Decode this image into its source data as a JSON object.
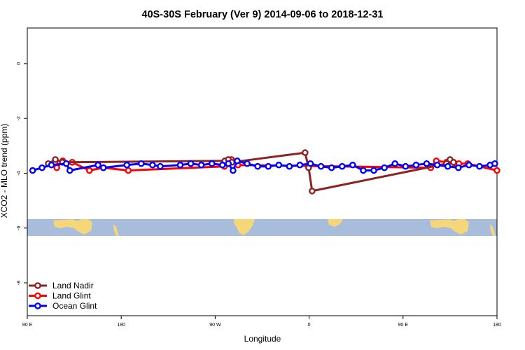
{
  "chart_data": {
    "type": "line",
    "title": "40S-30S February (Ver 9)   2014-09-06 to 2018-12-31",
    "xlabel": "Longitude",
    "ylabel": "XCO2 - MLO trend (ppm)",
    "xlim": [
      90,
      450
    ],
    "ylim": [
      -9.2,
      1.3
    ],
    "x_ticks": [
      {
        "value": 90,
        "label": "90 E"
      },
      {
        "value": 162,
        "label": "180"
      },
      {
        "value": 234,
        "label": "90 W"
      },
      {
        "value": 306,
        "label": "0"
      },
      {
        "value": 378,
        "label": "90 E"
      },
      {
        "value": 450,
        "label": "180"
      }
    ],
    "y_ticks": [
      0,
      -2,
      -4,
      -6,
      -8
    ],
    "legend_position": "bottom-left",
    "series": [
      {
        "name": "Land Nadir",
        "color": "#8b2323",
        "x": [
          106.1,
          111.5,
          116.9,
          241.4,
          244.1,
          246.8,
          302.9,
          305.6,
          308.3,
          411.3,
          414.0,
          416.7
        ],
        "y": [
          -3.65,
          -3.5,
          -3.6,
          -3.55,
          -3.5,
          -3.6,
          -3.25,
          -3.8,
          -4.65,
          -3.65,
          -3.5,
          -3.6
        ]
      },
      {
        "name": "Land Glint",
        "color": "#ff0000",
        "x": [
          111.3,
          112.6,
          117.2,
          119.9,
          124.4,
          137.6,
          148.3,
          167.4,
          241.1,
          243.8,
          246.5,
          251.4,
          399.2,
          403.5,
          411.3,
          417.8,
          420.8,
          427.6,
          450.0
        ],
        "y": [
          -3.6,
          -3.8,
          -3.55,
          -3.65,
          -3.6,
          -3.9,
          -3.8,
          -3.9,
          -3.75,
          -3.6,
          -3.5,
          -3.7,
          -3.8,
          -3.55,
          -3.6,
          -3.65,
          -3.65,
          -3.65,
          -3.9
        ]
      },
      {
        "name": "Ocean Glint",
        "color": "#0000ff",
        "x": [
          94.1,
          101.3,
          108.5,
          119.9,
          122.6,
          144.2,
          148.3,
          166.3,
          177.3,
          186.0,
          191.9,
          207.2,
          215.3,
          223.4,
          231.5,
          239.6,
          244.1,
          247.7,
          250.9,
          258.5,
          266.6,
          274.7,
          282.8,
          290.9,
          298.9,
          307.0,
          315.1,
          323.2,
          331.3,
          339.4,
          347.5,
          355.6,
          363.7,
          371.8,
          379.9,
          388.0,
          396.1,
          404.2,
          412.3,
          420.4,
          428.5,
          436.6,
          444.7,
          448.3
        ],
        "y": [
          -3.9,
          -3.8,
          -3.7,
          -3.65,
          -3.9,
          -3.7,
          -3.8,
          -3.7,
          -3.65,
          -3.7,
          -3.75,
          -3.7,
          -3.65,
          -3.7,
          -3.65,
          -3.7,
          -3.65,
          -3.9,
          -3.55,
          -3.65,
          -3.75,
          -3.75,
          -3.7,
          -3.75,
          -3.7,
          -3.65,
          -3.75,
          -3.8,
          -3.75,
          -3.7,
          -3.9,
          -3.9,
          -3.8,
          -3.65,
          -3.75,
          -3.7,
          -3.65,
          -3.7,
          -3.75,
          -3.8,
          -3.7,
          -3.75,
          -3.7,
          -3.65
        ]
      }
    ]
  },
  "map_strip": {
    "ocean_color": "#a8bcdc",
    "land_color": "#f5d77a"
  }
}
